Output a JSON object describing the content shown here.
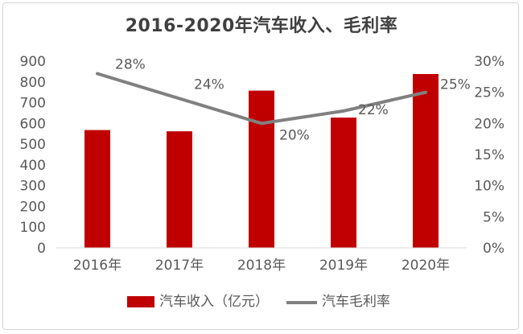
{
  "chart_data": {
    "type": "bar",
    "title": "2016-2020年汽车收入、毛利率",
    "categories": [
      "2016年",
      "2017年",
      "2018年",
      "2019年",
      "2020年"
    ],
    "series": [
      {
        "name": "汽车收入（亿元）",
        "type": "bar",
        "axis": "left",
        "values": [
          568,
          562,
          758,
          628,
          838
        ],
        "color": "#c00000"
      },
      {
        "name": "汽车毛利率",
        "type": "line",
        "axis": "right",
        "values": [
          28,
          24,
          20,
          22,
          25
        ],
        "labels": [
          "28%",
          "24%",
          "20%",
          "22%",
          "25%"
        ],
        "color": "#808080"
      }
    ],
    "y_left": {
      "lim": [
        0,
        900
      ],
      "ticks": [
        "0",
        "100",
        "200",
        "300",
        "400",
        "500",
        "600",
        "700",
        "800",
        "900"
      ]
    },
    "y_right": {
      "lim": [
        0,
        30
      ],
      "ticks": [
        "0%",
        "5%",
        "10%",
        "15%",
        "20%",
        "25%",
        "30%"
      ]
    },
    "grid": false,
    "legend": "bottom"
  }
}
